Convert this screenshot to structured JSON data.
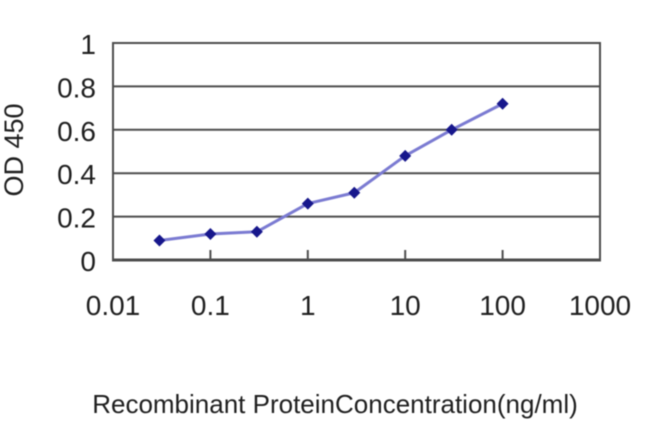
{
  "figure": {
    "background": "#ffffff",
    "description_colors": {
      "grid_and_axis": "#4d4d4d",
      "line": "#7b7bd2",
      "marker": "#17178c",
      "text": "#1f1f1f"
    }
  },
  "chart_data": {
    "type": "line",
    "x_scale": "log",
    "x": [
      0.03,
      0.1,
      0.3,
      1,
      3,
      10,
      30,
      100
    ],
    "y": [
      0.09,
      0.12,
      0.13,
      0.26,
      0.31,
      0.48,
      0.6,
      0.72
    ],
    "title": "",
    "xlabel": "Recombinant ProteinConcentration(ng/ml)",
    "ylabel": "OD 450",
    "xlim": [
      0.01,
      1000
    ],
    "ylim": [
      0,
      1
    ],
    "x_tick_values": [
      0.01,
      0.1,
      1,
      10,
      100,
      1000
    ],
    "x_tick_labels": [
      "0.01",
      "0.1",
      "1",
      "10",
      "100",
      "1000"
    ],
    "y_tick_values": [
      0,
      0.2,
      0.4,
      0.6,
      0.8,
      1
    ],
    "y_tick_labels": [
      "0",
      "0.2",
      "0.4",
      "0.6",
      "0.8",
      "1"
    ],
    "grid": "horizontal",
    "legend": false,
    "marker": "diamond",
    "colors": {
      "line": "#7b7bd2",
      "marker": "#17178c",
      "grid": "#4d4d4d",
      "text": "#1f1f1f"
    }
  }
}
